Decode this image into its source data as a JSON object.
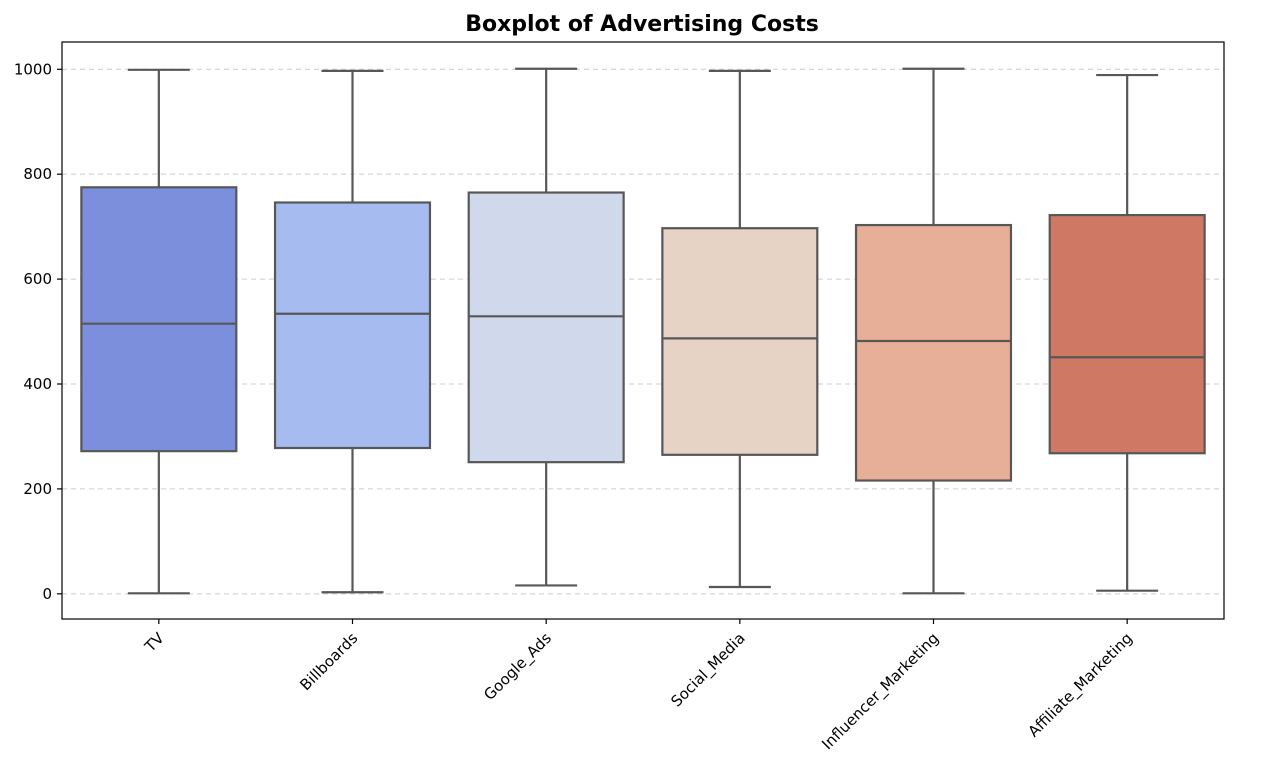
{
  "chart_data": {
    "type": "boxplot",
    "title": "Boxplot of Advertising Costs",
    "xlabel": "",
    "ylabel": "",
    "ylim": [
      -48,
      1052
    ],
    "y_ticks": [
      0,
      200,
      400,
      600,
      800,
      1000
    ],
    "grid": "y dashed",
    "categories": [
      "TV",
      "Billboards",
      "Google_Ads",
      "Social_Media",
      "Influencer_Marketing",
      "Affiliate_Marketing"
    ],
    "boxes": [
      {
        "category": "TV",
        "whisker_low": 1,
        "q1": 272,
        "median": 515,
        "q3": 775,
        "whisker_high": 999,
        "color": "#7b8fdd"
      },
      {
        "category": "Billboards",
        "whisker_low": 3,
        "q1": 278,
        "median": 534,
        "q3": 746,
        "whisker_high": 997,
        "color": "#a6bbef"
      },
      {
        "category": "Google_Ads",
        "whisker_low": 16,
        "q1": 251,
        "median": 529,
        "q3": 765,
        "whisker_high": 1001,
        "color": "#cfd9eb"
      },
      {
        "category": "Social_Media",
        "whisker_low": 13,
        "q1": 265,
        "median": 487,
        "q3": 697,
        "whisker_high": 997,
        "color": "#e7d3c6"
      },
      {
        "category": "Influencer_Marketing",
        "whisker_low": 1,
        "q1": 216,
        "median": 482,
        "q3": 703,
        "whisker_high": 1001,
        "color": "#e8af98"
      },
      {
        "category": "Affiliate_Marketing",
        "whisker_low": 6,
        "q1": 268,
        "median": 451,
        "q3": 722,
        "whisker_high": 989,
        "color": "#cf7863"
      }
    ]
  }
}
